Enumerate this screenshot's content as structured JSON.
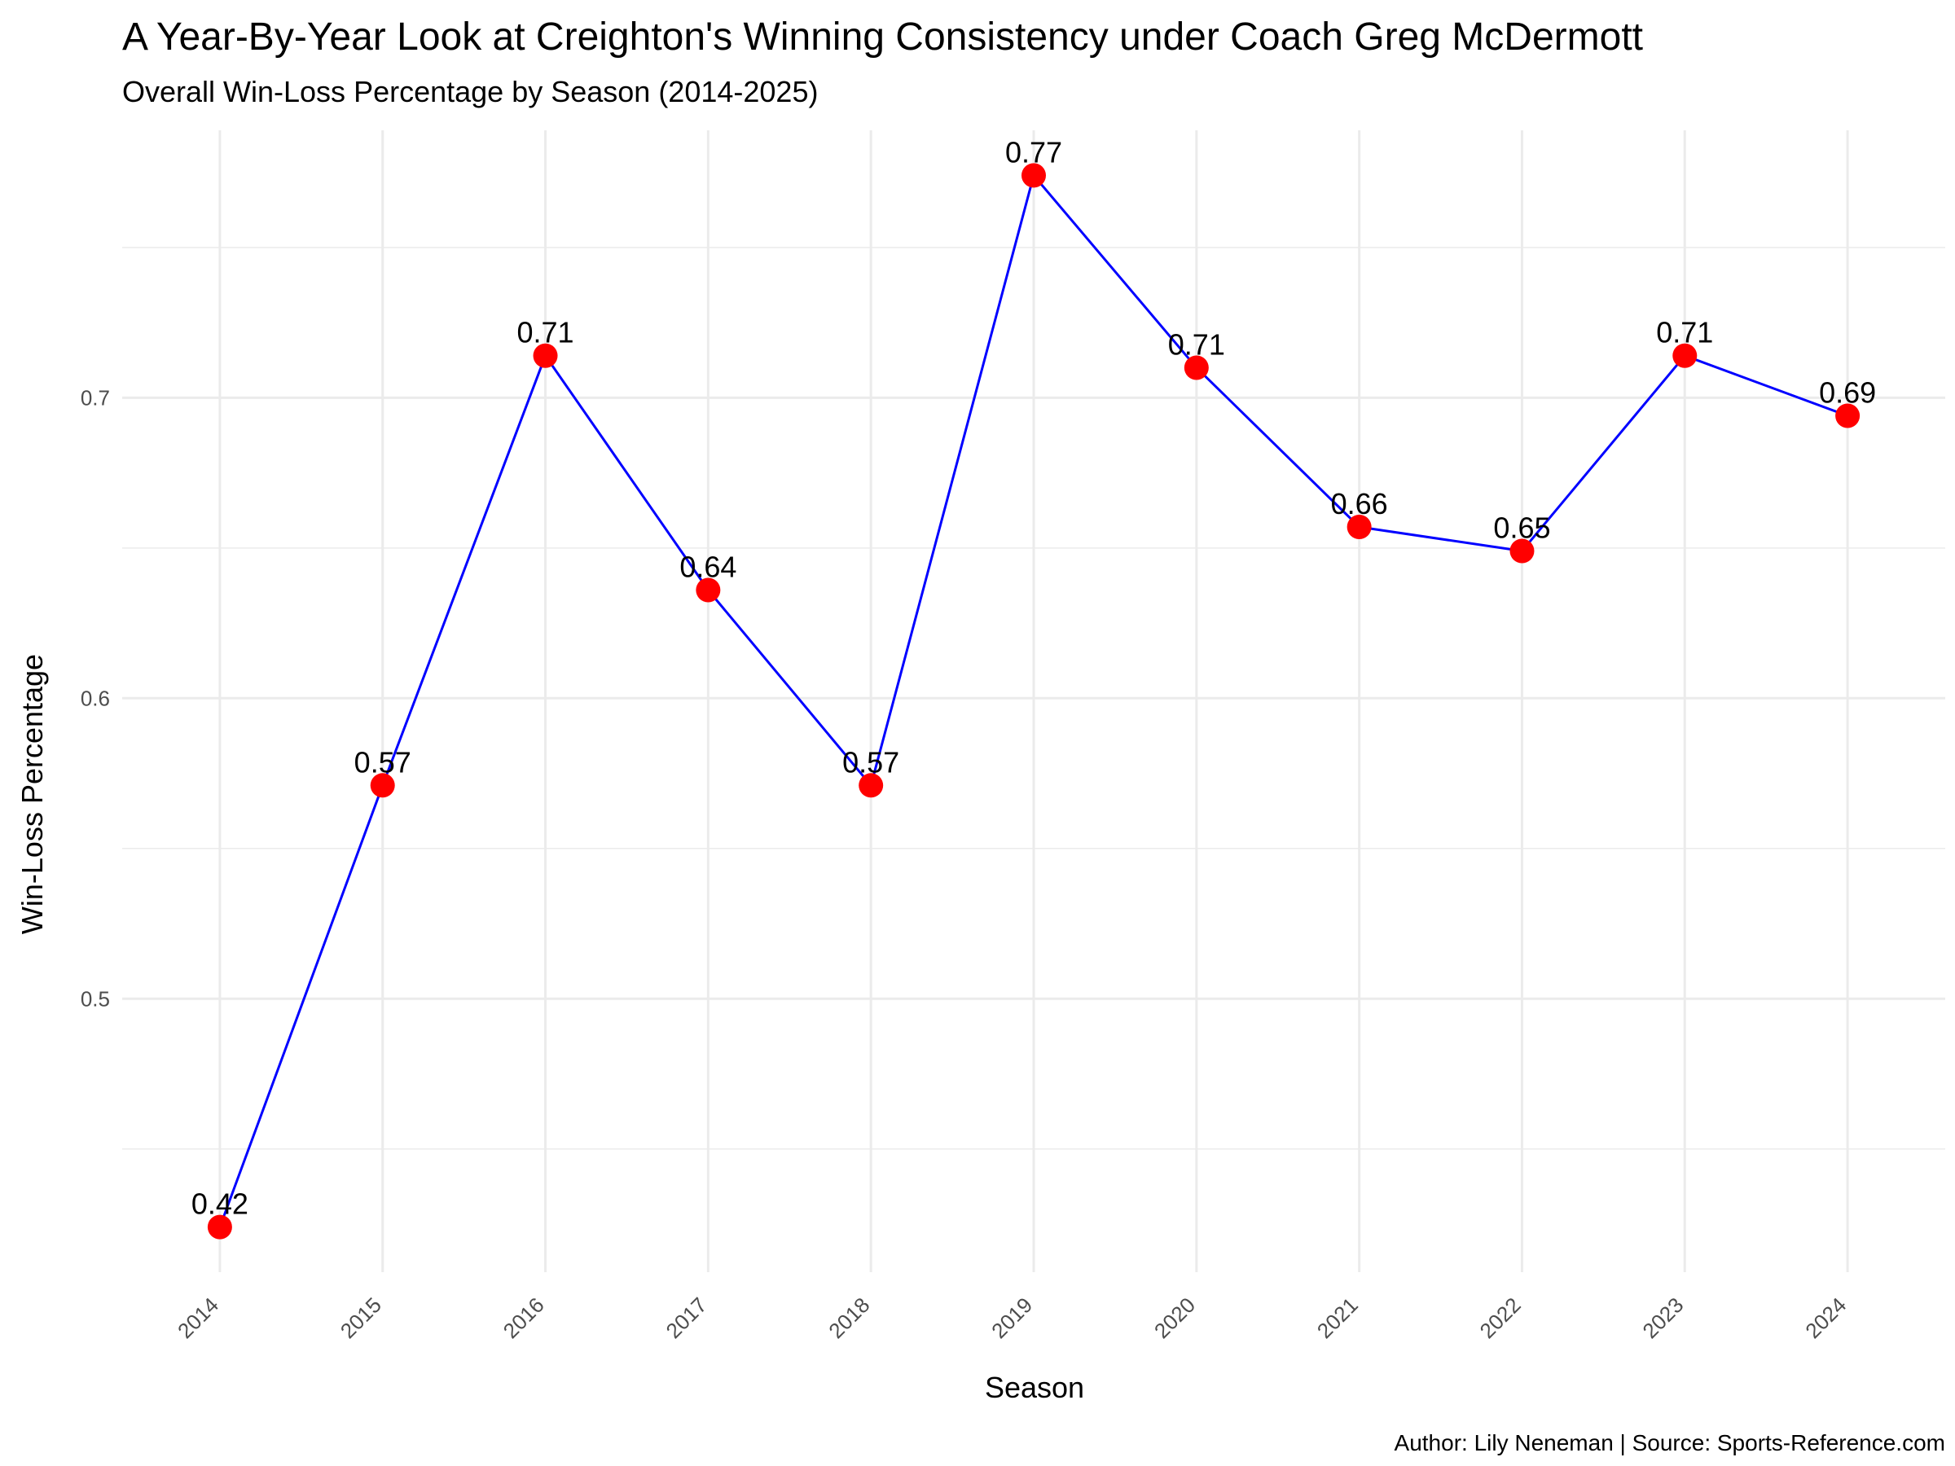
{
  "chart_data": {
    "type": "line",
    "title": "A Year-By-Year Look at Creighton's Winning Consistency under Coach Greg McDermott",
    "subtitle": "Overall Win-Loss Percentage by Season (2014-2025)",
    "caption": "Author: Lily Neneman | Source: Sports-Reference.com",
    "xlabel": "Season",
    "ylabel": "Win-Loss Percentage",
    "x": [
      2014,
      2015,
      2016,
      2017,
      2018,
      2019,
      2020,
      2021,
      2022,
      2023,
      2024
    ],
    "series": [
      {
        "values": [
          0.424,
          0.571,
          0.714,
          0.636,
          0.571,
          0.774,
          0.71,
          0.657,
          0.649,
          0.714,
          0.694
        ],
        "labels": [
          "0.42",
          "0.57",
          "0.71",
          "0.64",
          "0.57",
          "0.77",
          "0.71",
          "0.66",
          "0.65",
          "0.71",
          "0.69"
        ],
        "line_color": "#0000ff",
        "point_color": "#ff0000"
      }
    ],
    "y_ticks": [
      0.5,
      0.6,
      0.7
    ],
    "y_tick_labels": [
      "0.5",
      "0.6",
      "0.7"
    ],
    "ylim": [
      0.409,
      0.789
    ],
    "xlim": [
      2013.4,
      2024.6
    ],
    "grid": true,
    "legend": "none"
  }
}
